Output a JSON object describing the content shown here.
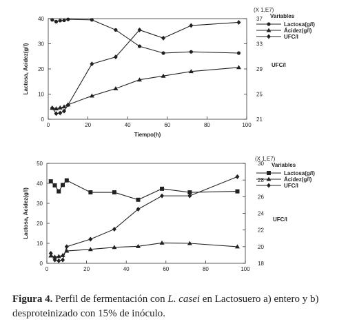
{
  "chart_data": [
    {
      "type": "line",
      "panel": "a",
      "xlabel": "Tiempo(h)",
      "ylabel": "Lactosa, Acidez(g/l)",
      "y2label": "UFC/l",
      "y2_scale_label": "(X 1,E7)",
      "legend_title": "Variables",
      "legend_placement": "top-right",
      "xlim": [
        0,
        100
      ],
      "ylim": [
        0,
        40
      ],
      "y2lim": [
        21,
        37
      ],
      "x_ticks": [
        "0",
        "20",
        "40",
        "60",
        "80",
        "100"
      ],
      "y_ticks": [
        "0",
        "10",
        "20",
        "30",
        "40"
      ],
      "y2_ticks": [
        "21",
        "25",
        "29",
        "33",
        "37"
      ],
      "series": [
        {
          "name": "Lactosa(g/l)",
          "axis": "left",
          "marker": "circle",
          "x": [
            2,
            4,
            6,
            8,
            10,
            22,
            34,
            46,
            58,
            72,
            96
          ],
          "y": [
            39.5,
            38.8,
            39.2,
            39.3,
            39.7,
            39.5,
            35.5,
            29,
            26.3,
            26.8,
            26.3
          ]
        },
        {
          "name": "Ácidez(g/l)",
          "axis": "left",
          "marker": "triangle",
          "x": [
            2,
            4,
            6,
            8,
            10,
            22,
            34,
            46,
            58,
            72,
            96
          ],
          "y": [
            4.5,
            4.2,
            4.6,
            5.0,
            5.8,
            9.3,
            12.2,
            15.7,
            17.2,
            19,
            20.6
          ]
        },
        {
          "name": "UFC/l",
          "axis": "right",
          "marker": "diamond",
          "x": [
            2,
            4,
            6,
            8,
            10,
            22,
            34,
            46,
            58,
            72,
            96
          ],
          "y": [
            22.8,
            21.9,
            22.0,
            22.3,
            23.3,
            29.8,
            30.9,
            35.2,
            33.9,
            35.9,
            36.4
          ]
        }
      ]
    },
    {
      "type": "line",
      "panel": "b",
      "xlabel": "",
      "ylabel": "Lactosa, Acidez(g/l)",
      "y2label": "UFC/l",
      "y2_scale_label": "(X 1,E7)",
      "legend_title": "Variables",
      "legend_placement": "top-right",
      "xlim": [
        0,
        100
      ],
      "ylim": [
        0,
        50
      ],
      "y2lim": [
        18,
        30
      ],
      "x_ticks": [
        "0",
        "20",
        "40",
        "60",
        "80",
        "100"
      ],
      "y_ticks": [
        "0",
        "10",
        "20",
        "30",
        "40",
        "50"
      ],
      "y2_ticks": [
        "18",
        "20",
        "22",
        "24",
        "26",
        "28",
        "30"
      ],
      "series": [
        {
          "name": "Lactosa(g/l)",
          "axis": "left",
          "marker": "square",
          "x": [
            2,
            4,
            6,
            8,
            10,
            22,
            34,
            46,
            58,
            72,
            96
          ],
          "y": [
            41,
            39,
            36,
            39.2,
            41.5,
            35.5,
            35.5,
            31.8,
            37.3,
            35.5,
            36
          ]
        },
        {
          "name": "Ácidez(g/l)",
          "axis": "left",
          "marker": "triangle",
          "x": [
            2,
            4,
            6,
            8,
            10,
            22,
            34,
            46,
            58,
            72,
            96
          ],
          "y": [
            3.8,
            3.2,
            3.5,
            4.0,
            6.2,
            7.0,
            8.0,
            8.5,
            10.2,
            10.0,
            8.3
          ]
        },
        {
          "name": "UFC/l",
          "axis": "right",
          "marker": "diamond",
          "x": [
            2,
            4,
            6,
            8,
            10,
            22,
            34,
            46,
            58,
            72,
            96
          ],
          "y": [
            19.2,
            18.4,
            18.3,
            18.4,
            20.0,
            20.9,
            22.1,
            24.5,
            26.1,
            26.1,
            28.4
          ]
        }
      ]
    }
  ],
  "caption": {
    "label": "Figura 4.",
    "text_before": " Perfil de fermentación con ",
    "organism": "L. casei",
    "text_after": " en Lactosuero a) entero y b) desproteinizado con 15% de inóculo."
  }
}
